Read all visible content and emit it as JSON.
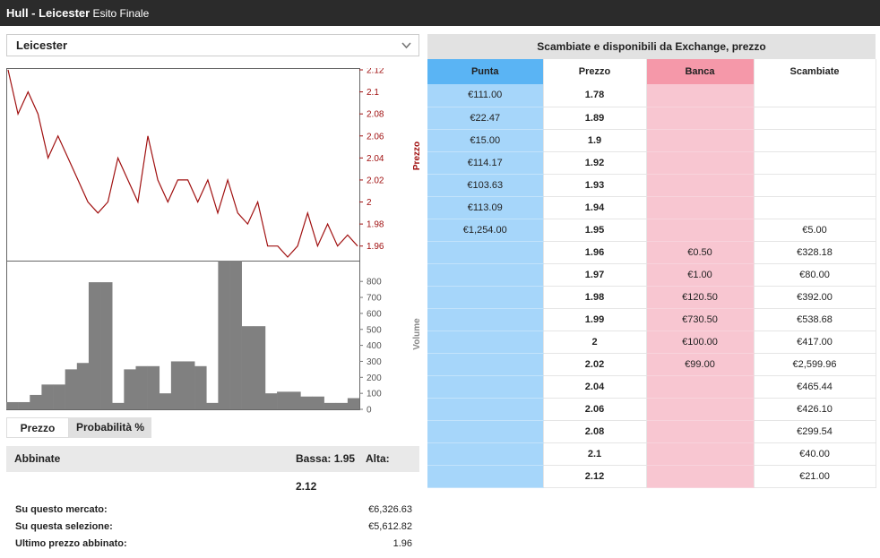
{
  "header": {
    "title_bold": "Hull - Leicester",
    "title_sub": "Esito Finale"
  },
  "selection": {
    "value": "Leicester"
  },
  "chart_data": [
    {
      "type": "line",
      "ylabel": "Prezzo",
      "ylim": [
        1.95,
        2.12
      ],
      "yticks": [
        2.12,
        2.1,
        2.08,
        2.06,
        2.04,
        2.02,
        2,
        1.98,
        1.96
      ],
      "ytick_labels": [
        "2.12",
        "2.1",
        "2.08",
        "2.06",
        "2.04",
        "2.02",
        "2",
        "1.98",
        "1.96"
      ],
      "series": [
        {
          "values": [
            2.12,
            2.08,
            2.1,
            2.08,
            2.04,
            2.06,
            2.04,
            2.02,
            2.0,
            1.99,
            2.0,
            2.04,
            2.02,
            2.0,
            2.06,
            2.02,
            2.0,
            2.02,
            2.02,
            2.0,
            2.02,
            1.99,
            2.02,
            1.99,
            1.98,
            2.0,
            1.96,
            1.96,
            1.95,
            1.96,
            1.99,
            1.96,
            1.98,
            1.96,
            1.97,
            1.96
          ],
          "color": "#a01010"
        }
      ]
    },
    {
      "type": "bar",
      "ylabel": "Volume",
      "ylim": [
        0,
        930
      ],
      "yticks": [
        0,
        100,
        200,
        300,
        400,
        500,
        600,
        700,
        800
      ],
      "ytick_labels": [
        "0",
        "100",
        "200",
        "300",
        "400",
        "500",
        "600",
        "700",
        "800"
      ],
      "values": [
        45,
        45,
        90,
        155,
        155,
        250,
        290,
        795,
        795,
        40,
        250,
        270,
        270,
        100,
        300,
        300,
        270,
        40,
        930,
        930,
        520,
        520,
        100,
        110,
        110,
        80,
        80,
        40,
        40,
        70
      ],
      "color": "#808080"
    }
  ],
  "toggle": {
    "opt1": "Prezzo",
    "opt2": "Probabilità %"
  },
  "matched": {
    "label": "Abbinate",
    "low": "Bassa: 1.95",
    "high_label": "Alta:",
    "high_value": "2.12"
  },
  "stats": [
    {
      "label": "Su questo mercato:",
      "value": "€6,326.63"
    },
    {
      "label": "Su questa selezione:",
      "value": "€5,612.82"
    },
    {
      "label": "Ultimo prezzo abbinato:",
      "value": "1.96"
    }
  ],
  "exchange": {
    "title": "Scambiate e disponibili da Exchange, prezzo",
    "headers": [
      "Punta",
      "Prezzo",
      "Banca",
      "Scambiate"
    ],
    "colors": {
      "back_header": "#5ab4f4",
      "back_cell": "#a6d6fa",
      "lay_header": "#f598a9",
      "lay_cell": "#f8c6d1"
    },
    "rows": [
      {
        "back": "€111.00",
        "price": "1.78",
        "lay": "",
        "traded": ""
      },
      {
        "back": "€22.47",
        "price": "1.89",
        "lay": "",
        "traded": ""
      },
      {
        "back": "€15.00",
        "price": "1.9",
        "lay": "",
        "traded": ""
      },
      {
        "back": "€114.17",
        "price": "1.92",
        "lay": "",
        "traded": ""
      },
      {
        "back": "€103.63",
        "price": "1.93",
        "lay": "",
        "traded": ""
      },
      {
        "back": "€113.09",
        "price": "1.94",
        "lay": "",
        "traded": ""
      },
      {
        "back": "€1,254.00",
        "price": "1.95",
        "lay": "",
        "traded": "€5.00"
      },
      {
        "back": "",
        "price": "1.96",
        "lay": "€0.50",
        "traded": "€328.18"
      },
      {
        "back": "",
        "price": "1.97",
        "lay": "€1.00",
        "traded": "€80.00"
      },
      {
        "back": "",
        "price": "1.98",
        "lay": "€120.50",
        "traded": "€392.00"
      },
      {
        "back": "",
        "price": "1.99",
        "lay": "€730.50",
        "traded": "€538.68"
      },
      {
        "back": "",
        "price": "2",
        "lay": "€100.00",
        "traded": "€417.00"
      },
      {
        "back": "",
        "price": "2.02",
        "lay": "€99.00",
        "traded": "€2,599.96"
      },
      {
        "back": "",
        "price": "2.04",
        "lay": "",
        "traded": "€465.44"
      },
      {
        "back": "",
        "price": "2.06",
        "lay": "",
        "traded": "€426.10"
      },
      {
        "back": "",
        "price": "2.08",
        "lay": "",
        "traded": "€299.54"
      },
      {
        "back": "",
        "price": "2.1",
        "lay": "",
        "traded": "€40.00"
      },
      {
        "back": "",
        "price": "2.12",
        "lay": "",
        "traded": "€21.00"
      }
    ]
  }
}
